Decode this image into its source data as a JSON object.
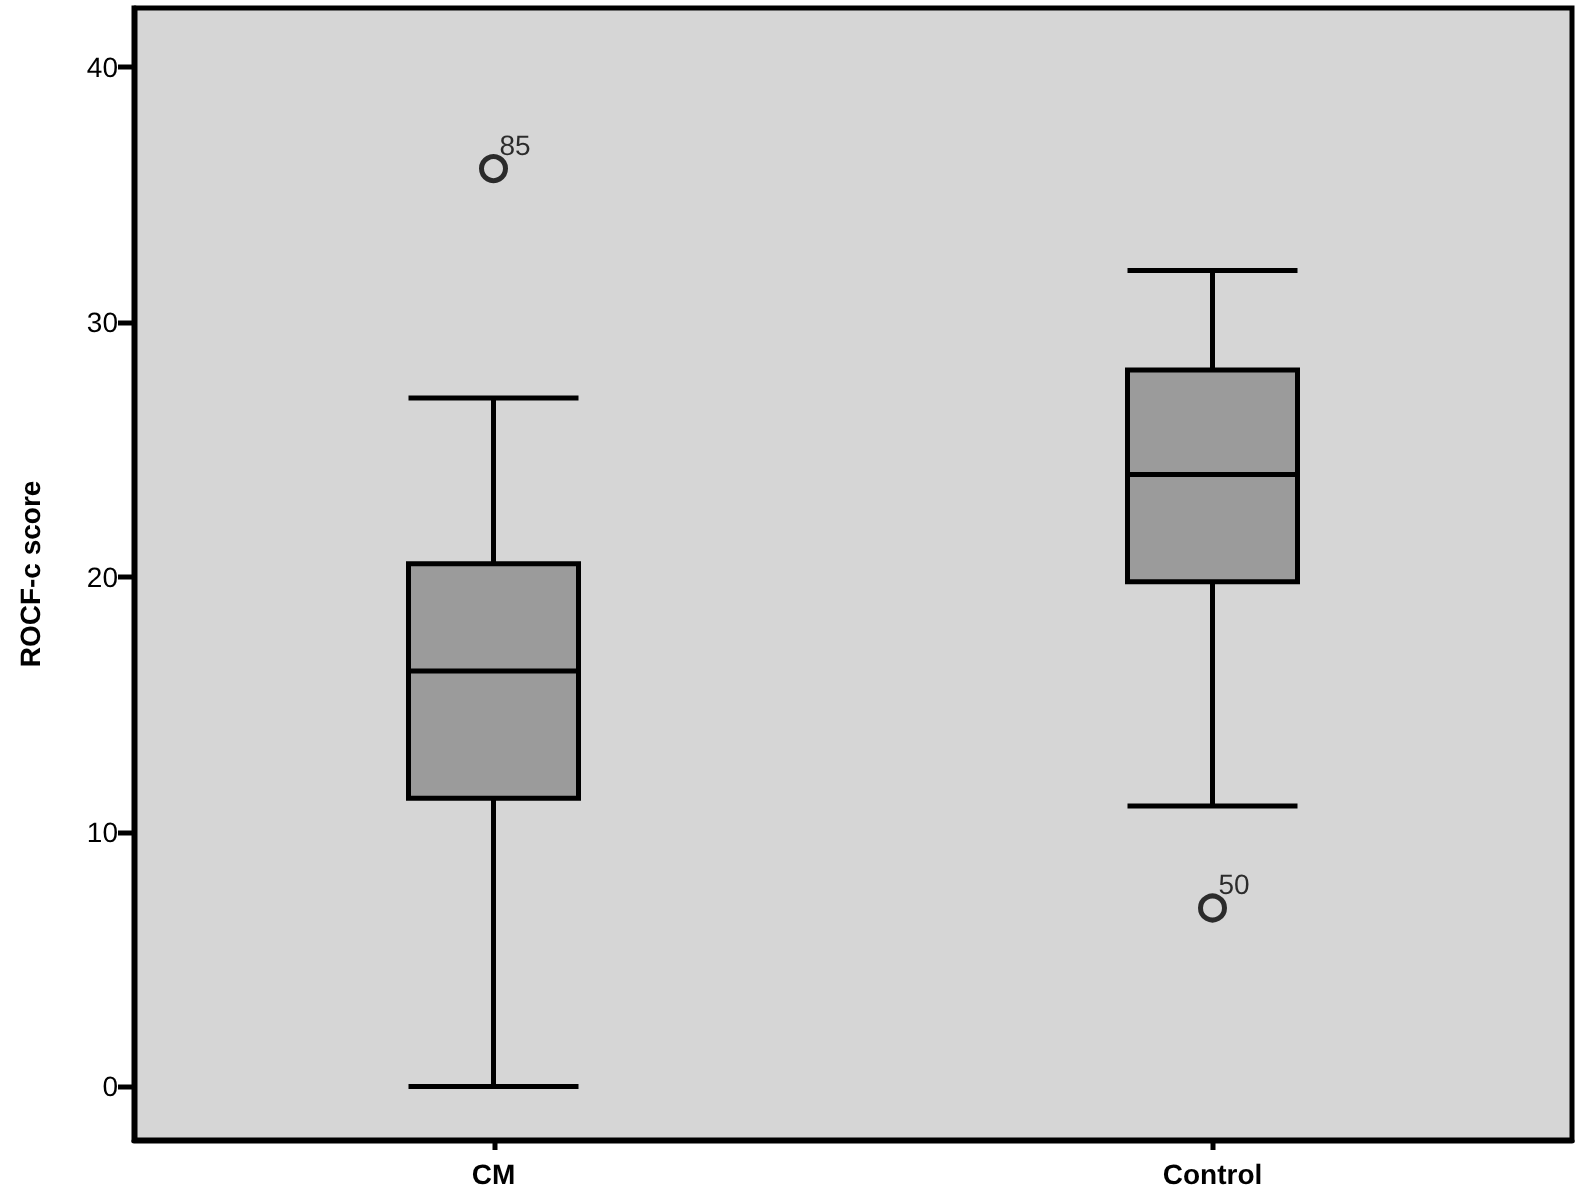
{
  "chart_data": {
    "type": "box",
    "ylabel": "ROCF-c score",
    "categories": [
      "CM",
      "Control"
    ],
    "series": [
      {
        "color": "#9b9b9b",
        "boxes": [
          {
            "low": 0,
            "q1": 11.3,
            "median": 16.3,
            "q3": 20.5,
            "high": 27,
            "outliers": [
              36
            ]
          },
          {
            "low": 11,
            "q1": 19.8,
            "median": 24,
            "q3": 28.1,
            "high": 32,
            "outliers": [
              7
            ]
          }
        ]
      }
    ],
    "ylim": [
      -2.1,
      42.3
    ],
    "yticks": [
      0,
      10,
      20,
      30,
      40
    ],
    "grid": false,
    "annotations": [
      "85",
      "50"
    ]
  }
}
